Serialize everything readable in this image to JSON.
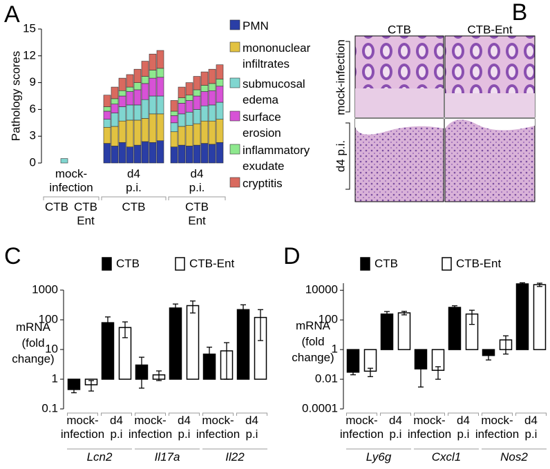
{
  "chart_data": [
    {
      "type": "stacked_bar",
      "panel_label": "A",
      "ylabel": "Pathology scores",
      "ylim": [
        0,
        15
      ],
      "yticks": [
        0,
        3,
        6,
        9,
        12,
        15
      ],
      "categories": [
        null,
        null,
        null,
        null,
        null,
        null,
        null,
        null,
        null,
        null,
        null,
        null,
        null,
        null,
        null,
        null,
        null,
        null,
        null,
        null,
        null
      ],
      "groups": [
        {
          "label": "mock-infection",
          "subgroups": [
            "CTB",
            "CTB Ent"
          ]
        },
        {
          "label": "d4 p.i.",
          "subgroups": [
            "CTB"
          ]
        },
        {
          "label": "d4 p.i.",
          "subgroups": [
            "CTB Ent"
          ]
        }
      ],
      "series": [
        {
          "name": "PMN",
          "color": "#2a3ea6",
          "values": [
            0,
            0,
            0,
            0,
            0,
            0,
            2.2,
            1.9,
            2.3,
            1.8,
            2.0,
            2.4,
            2.3,
            2.5,
            1.8,
            2.0,
            1.9,
            2.0,
            2.2,
            2.1,
            2.3
          ]
        },
        {
          "name": "mononuclear infiltrates",
          "color": "#e2c241",
          "values": [
            0,
            0,
            0,
            0,
            0,
            0,
            1.8,
            2.2,
            2.4,
            3.0,
            2.8,
            2.6,
            3.2,
            3.0,
            1.7,
            2.1,
            2.3,
            2.4,
            2.5,
            2.6,
            2.6
          ]
        },
        {
          "name": "submucosal edema",
          "color": "#80d6d0",
          "values": [
            0,
            0,
            0.5,
            0,
            0,
            0,
            0.9,
            1.5,
            1.6,
            1.7,
            1.7,
            2.1,
            2.0,
            2.0,
            1.0,
            1.4,
            1.5,
            1.6,
            1.7,
            1.8,
            1.9
          ]
        },
        {
          "name": "surface erosion",
          "color": "#d752d6",
          "values": [
            0,
            0,
            0,
            0,
            0,
            0,
            0.9,
            1.0,
            1.2,
            1.5,
            1.7,
            1.8,
            2.0,
            2.1,
            0.8,
            1.2,
            1.3,
            1.5,
            1.6,
            1.6,
            1.8
          ]
        },
        {
          "name": "inflammatory exudate",
          "color": "#8ee88e",
          "values": [
            0,
            0,
            0,
            0,
            0,
            0,
            0.5,
            0.6,
            0.6,
            0.5,
            0.8,
            0.8,
            0.9,
            1.0,
            0.5,
            0.6,
            0.6,
            0.7,
            0.7,
            0.8,
            0.8
          ]
        },
        {
          "name": "cryptitis",
          "color": "#d96a5f",
          "values": [
            0,
            0,
            0,
            0,
            0,
            0,
            1.3,
            1.3,
            1.4,
            1.4,
            1.5,
            1.7,
            1.8,
            2.0,
            1.2,
            1.2,
            1.4,
            1.5,
            1.5,
            1.6,
            1.6
          ]
        }
      ]
    },
    {
      "type": "bar",
      "panel_label": "C",
      "ylabel": "mRNA (fold change)",
      "log": true,
      "ylim": [
        0.1,
        1000
      ],
      "yticks": [
        0.1,
        1,
        10,
        100,
        1000
      ],
      "categories": [
        "mock-infection",
        "d4 p.i",
        "mock-infection",
        "d4 p.i",
        "mock-infection",
        "d4 p.i"
      ],
      "groups": [
        "Lcn2",
        "Il17a",
        "Il22"
      ],
      "series": [
        {
          "name": "CTB",
          "color": "#000000",
          "values": [
            0.45,
            80,
            3,
            250,
            7,
            220
          ],
          "errors": [
            0.1,
            45,
            2.5,
            90,
            5,
            100
          ]
        },
        {
          "name": "CTB-Ent",
          "color": "#ffffff",
          "values": [
            0.65,
            55,
            1.4,
            300,
            9,
            120
          ],
          "errors": [
            0.25,
            30,
            0.5,
            130,
            8,
            100
          ]
        }
      ]
    },
    {
      "type": "bar",
      "panel_label": "D",
      "ylabel": "mRNA (fold change)",
      "log": true,
      "ylim": [
        0.0001,
        30000
      ],
      "yticks": [
        0.0001,
        0.01,
        1,
        100,
        10000
      ],
      "categories": [
        "mock-infection",
        "d4 p.i",
        "mock-infection",
        "d4 p.i",
        "mock-infection",
        "d4 p.i"
      ],
      "groups": [
        "Ly6g",
        "Cxcl1",
        "Nos2"
      ],
      "series": [
        {
          "name": "CTB",
          "color": "#000000",
          "values": [
            0.03,
            250,
            0.05,
            700,
            0.4,
            27000
          ],
          "errors": [
            0.01,
            120,
            0.047,
            200,
            0.2,
            5000
          ]
        },
        {
          "name": "CTB-Ent",
          "color": "#ffffff",
          "values": [
            0.035,
            300,
            0.04,
            250,
            4.5,
            24000
          ],
          "errors": [
            0.02,
            80,
            0.03,
            200,
            4,
            6000
          ]
        }
      ]
    }
  ],
  "panel_b": {
    "panel_label": "B",
    "columns": [
      "CTB",
      "CTB-Ent"
    ],
    "rows": [
      "mock-infection",
      "d4 p.i."
    ]
  }
}
